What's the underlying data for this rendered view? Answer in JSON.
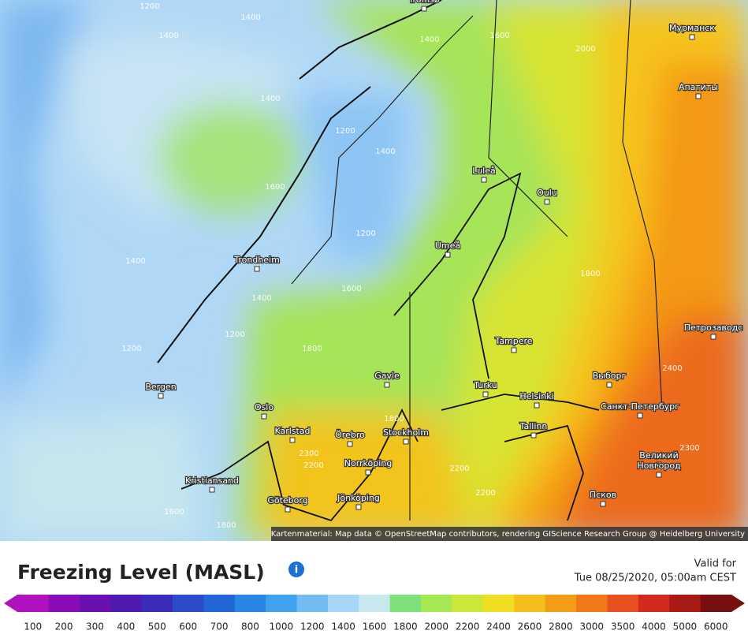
{
  "map": {
    "cities": [
      "Tromsø",
      "Мурманск",
      "Апатиты",
      "Luleå",
      "Oulu",
      "Umeå",
      "Trondheim",
      "Петрозаводс",
      "Tampere",
      "Выборг",
      "Gavle",
      "Turku",
      "Helsinki",
      "Bergen",
      "Санкт-Петербург",
      "Oslo",
      "Tallinn",
      "Karlstad",
      "Örebro",
      "Stockholm",
      "Великий",
      "Новгород",
      "Norrköping",
      "Kristiansand",
      "Псков",
      "Göteborg",
      "Jönköping"
    ],
    "contours": [
      1200,
      1400,
      1400,
      1400,
      1400,
      1600,
      2000,
      1200,
      1400,
      1600,
      1200,
      1400,
      1800,
      1600,
      1400,
      1200,
      1200,
      1800,
      2400,
      1800,
      2300,
      2200,
      2200,
      2300,
      2200,
      1600,
      1800
    ],
    "attribution": "Kartenmaterial: Map data © OpenStreetMap contributors, rendering GIScience Research Group @ Heidelberg University"
  },
  "legend": {
    "title": "Freezing Level (MASL)",
    "valid_label": "Valid for",
    "valid_time": "Tue 08/25/2020, 05:00am CEST",
    "ticks": [
      100,
      200,
      300,
      400,
      500,
      600,
      700,
      800,
      1000,
      1200,
      1400,
      1600,
      1800,
      2000,
      2200,
      2400,
      2600,
      2800,
      3000,
      3500,
      4000,
      5000,
      6000
    ],
    "colors": [
      "#b012c0",
      "#8a0cb8",
      "#6a10b0",
      "#4e1ab0",
      "#3a2cb8",
      "#2a4cc8",
      "#2266d6",
      "#2a86e6",
      "#3ea2ef",
      "#72bcf3",
      "#a8d6f8",
      "#c8e8f0",
      "#7ee27a",
      "#a6e854",
      "#cde63a",
      "#f0de20",
      "#f6be1a",
      "#f49c16",
      "#f07818",
      "#e85020",
      "#d42a1e",
      "#a81a14",
      "#781010"
    ]
  }
}
